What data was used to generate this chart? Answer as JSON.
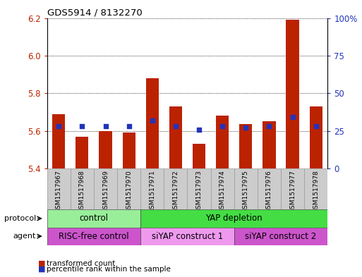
{
  "title": "GDS5914 / 8132270",
  "samples": [
    "GSM1517967",
    "GSM1517968",
    "GSM1517969",
    "GSM1517970",
    "GSM1517971",
    "GSM1517972",
    "GSM1517973",
    "GSM1517974",
    "GSM1517975",
    "GSM1517976",
    "GSM1517977",
    "GSM1517978"
  ],
  "transformed_count": [
    5.69,
    5.57,
    5.6,
    5.59,
    5.88,
    5.73,
    5.53,
    5.68,
    5.635,
    5.65,
    6.19,
    5.73
  ],
  "percentile_rank": [
    28,
    28,
    28,
    28,
    32,
    28,
    26,
    28,
    27,
    28,
    34,
    28
  ],
  "y_min": 5.4,
  "y_max": 6.2,
  "y_ticks": [
    5.4,
    5.6,
    5.8,
    6.0,
    6.2
  ],
  "y_right_ticks": [
    0,
    25,
    50,
    75,
    100
  ],
  "bar_color": "#bb2200",
  "dot_color": "#2233bb",
  "protocol_groups": [
    {
      "label": "control",
      "start": 0,
      "end": 3,
      "color": "#99ee99"
    },
    {
      "label": "YAP depletion",
      "start": 4,
      "end": 11,
      "color": "#44dd44"
    }
  ],
  "agent_groups": [
    {
      "label": "RISC-free control",
      "start": 0,
      "end": 3,
      "color": "#cc55cc"
    },
    {
      "label": "siYAP construct 1",
      "start": 4,
      "end": 7,
      "color": "#ee99ee"
    },
    {
      "label": "siYAP construct 2",
      "start": 8,
      "end": 11,
      "color": "#cc55cc"
    }
  ],
  "cell_color": "#cccccc",
  "cell_edge_color": "#999999",
  "legend_red": "transformed count",
  "legend_blue": "percentile rank within the sample",
  "label_protocol": "protocol",
  "label_agent": "agent"
}
